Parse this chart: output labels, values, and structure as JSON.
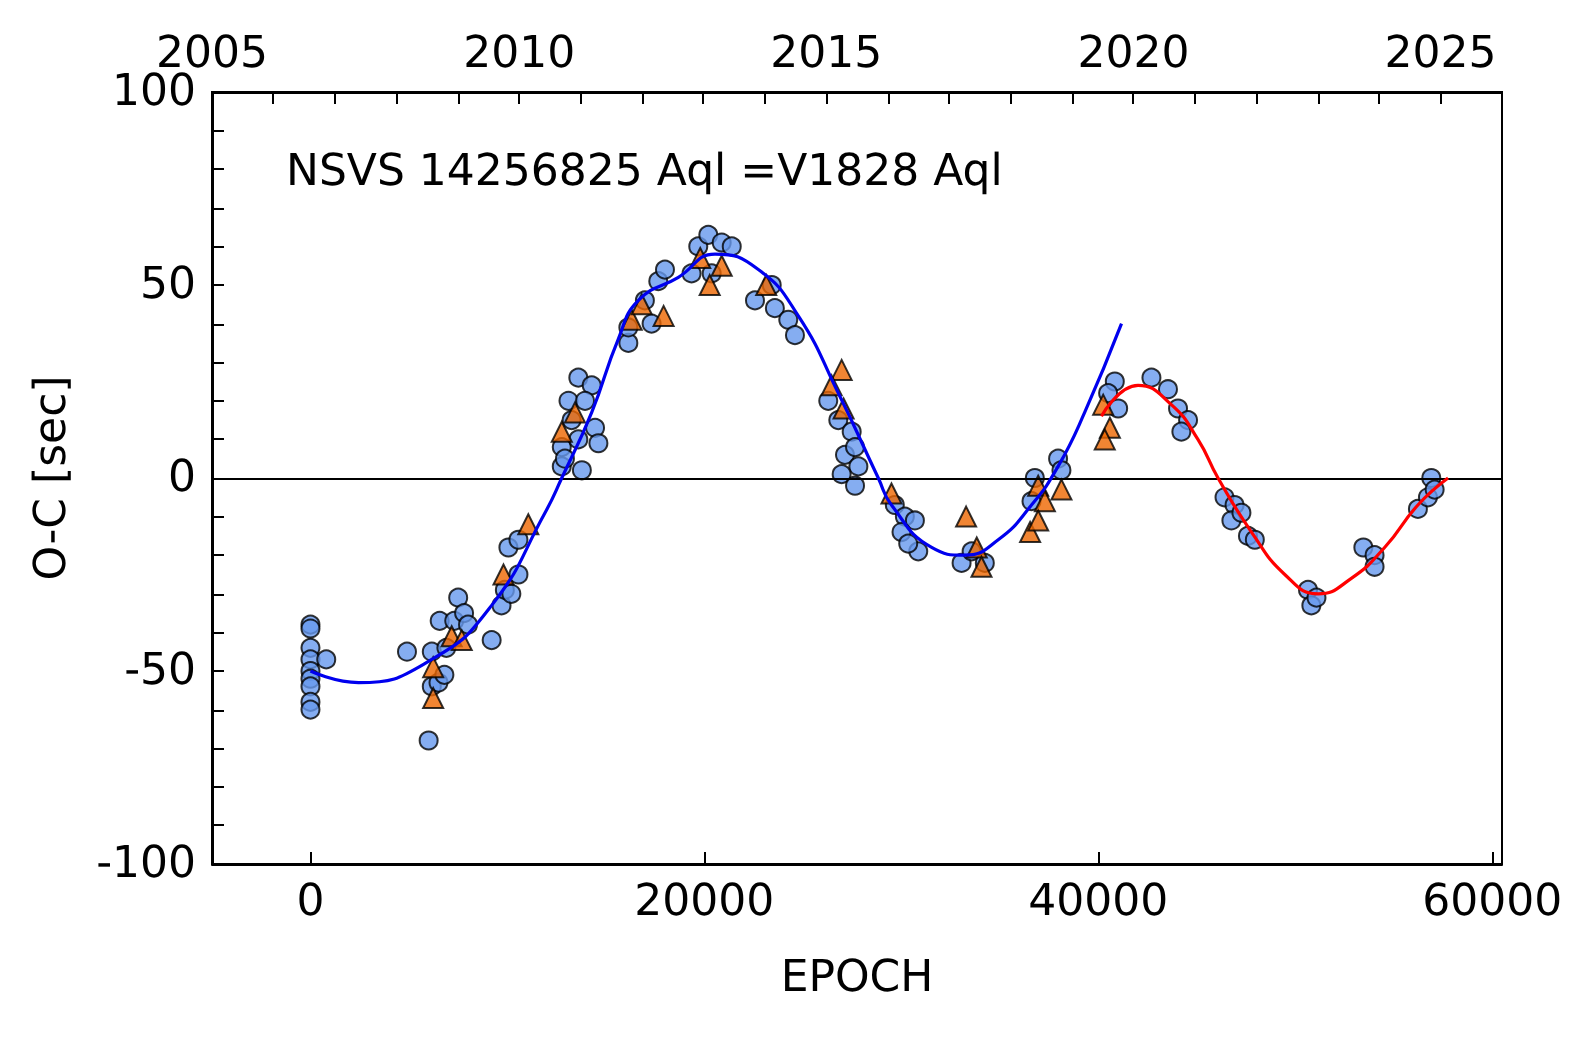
{
  "chart_data": {
    "type": "scatter",
    "title": "NSVS 14256825 Aql =V1828 Aql",
    "xlabel": "EPOCH",
    "ylabel": "O-C [sec]",
    "xlim": [
      -5000,
      60500
    ],
    "xticks": [
      0,
      20000,
      40000,
      60000
    ],
    "x2lim": [
      2005,
      2026
    ],
    "x2ticks": [
      2005,
      {
        "value": 2006,
        "label": null
      },
      {
        "value": 2007,
        "label": null
      },
      {
        "value": 2008,
        "label": null
      },
      {
        "value": 2009,
        "label": null
      },
      2010,
      {
        "value": 2011,
        "label": null
      },
      {
        "value": 2012,
        "label": null
      },
      {
        "value": 2013,
        "label": null
      },
      {
        "value": 2014,
        "label": null
      },
      2015,
      {
        "value": 2016,
        "label": null
      },
      {
        "value": 2017,
        "label": null
      },
      {
        "value": 2018,
        "label": null
      },
      {
        "value": 2019,
        "label": null
      },
      2020,
      {
        "value": 2021,
        "label": null
      },
      {
        "value": 2022,
        "label": null
      },
      {
        "value": 2023,
        "label": null
      },
      {
        "value": 2024,
        "label": null
      },
      2025
    ],
    "ylim": [
      -100,
      100
    ],
    "yticks": [
      -100,
      {
        "value": -90,
        "label": null
      },
      {
        "value": -80,
        "label": null
      },
      {
        "value": -70,
        "label": null
      },
      {
        "value": -60,
        "label": null
      },
      -50,
      {
        "value": -40,
        "label": null
      },
      {
        "value": -30,
        "label": null
      },
      {
        "value": -20,
        "label": null
      },
      {
        "value": -10,
        "label": null
      },
      0,
      {
        "value": 10,
        "label": null
      },
      {
        "value": 20,
        "label": null
      },
      {
        "value": 30,
        "label": null
      },
      {
        "value": 40,
        "label": null
      },
      50,
      {
        "value": 60,
        "label": null
      },
      {
        "value": 70,
        "label": null
      },
      {
        "value": 80,
        "label": null
      },
      {
        "value": 90,
        "label": null
      },
      100
    ],
    "grid": false,
    "ref_lines": [
      {
        "axis": "y",
        "value": 0,
        "color": "#000000"
      }
    ],
    "series": [
      {
        "marker": "circle",
        "color": "#6699ee",
        "x": [
          0,
          0,
          0,
          0,
          0,
          0,
          0,
          0,
          0,
          800,
          4900,
          6000,
          6160,
          6160,
          6500,
          6560,
          7300,
          7500,
          7800,
          8000,
          6900,
          6800,
          9200,
          9700,
          9870,
          10560,
          10200,
          10050,
          10560,
          13600,
          14280,
          13100,
          13940,
          13260,
          14450,
          12760,
          13600,
          14620,
          12760,
          13780,
          12920,
          16140,
          16140,
          16980,
          17660,
          18000,
          17320,
          19690,
          20200,
          20880,
          21390,
          19350,
          20370,
          23420,
          22570,
          23580,
          24260,
          24600,
          26290,
          26800,
          27480,
          27140,
          27820,
          26970,
          27650,
          27650,
          29670,
          30180,
          30690,
          30010,
          30860,
          30350,
          33060,
          33570,
          34240,
          36780,
          37960,
          38130,
          36610,
          40840,
          41010,
          40500,
          42700,
          43540,
          44050,
          44560,
          44220,
          46410,
          46920,
          46760,
          47270,
          47600,
          47950,
          50650,
          50820,
          51080,
          53460,
          54030,
          54030,
          56230,
          56740,
          56910,
          57080
        ],
        "values": [
          -38,
          -39,
          -44,
          -47,
          -50,
          -52,
          -54,
          -58,
          -60,
          -47,
          -45,
          -68,
          -45,
          -54,
          -53,
          -37,
          -37,
          -31,
          -35,
          -38,
          -44,
          -51,
          -42,
          -33,
          -29,
          -25,
          -30,
          -18,
          -16,
          26,
          24,
          20,
          20,
          15,
          13,
          8,
          10,
          9,
          3,
          2,
          5,
          35,
          39,
          46,
          51,
          54,
          40,
          60,
          63,
          61,
          60,
          53,
          53,
          50,
          46,
          44,
          41,
          37,
          20,
          15,
          12,
          6,
          3,
          1,
          -2,
          8,
          -7,
          -10,
          -11,
          -14,
          -19,
          -17,
          -22,
          -19,
          -22,
          0,
          5,
          2,
          -6,
          25,
          18,
          22,
          26,
          23,
          18,
          15,
          12,
          -5,
          -7,
          -11,
          -9,
          -15,
          -16,
          -29,
          -33,
          -31,
          -18,
          -20,
          -23,
          -8,
          -5,
          0,
          -3
        ]
      },
      {
        "marker": "triangle",
        "color": "#ee6600",
        "x": [
          6230,
          6230,
          7170,
          7680,
          9800,
          11060,
          13430,
          12760,
          16310,
          16820,
          17930,
          19790,
          20880,
          20270,
          23140,
          26970,
          26460,
          27070,
          29500,
          33290,
          33830,
          34070,
          36950,
          37290,
          38130,
          36540,
          36950,
          40250,
          40590,
          40330
        ],
        "values": [
          -49,
          -57,
          -41,
          -42,
          -25,
          -12,
          17,
          12,
          41,
          45,
          42,
          57,
          55,
          50,
          50,
          28,
          24,
          18,
          -4,
          -10,
          -18,
          -23,
          -2,
          -6,
          -3,
          -14,
          -11,
          19,
          13,
          10
        ]
      },
      {
        "type": "line",
        "marker": "none",
        "color": "#0000ee",
        "x": [
          0,
          2440,
          6160,
          9200,
          11910,
          12760,
          14280,
          15630,
          16650,
          18680,
          20540,
          22740,
          24770,
          26800,
          28830,
          29500,
          31540,
          33220,
          34920,
          36610,
          37960,
          39310,
          41180
        ],
        "values": [
          -50,
          -53,
          -47,
          -33,
          -9,
          0,
          17,
          36,
          46,
          52,
          58,
          54,
          42,
          22,
          0,
          -7,
          -18,
          -20,
          -16,
          -7,
          3,
          17,
          40
        ]
      },
      {
        "type": "line",
        "marker": "none",
        "color": "#ff0000",
        "x": [
          40160,
          42020,
          43710,
          45060,
          46080,
          47780,
          49470,
          51160,
          52850,
          54540,
          56230,
          57760
        ],
        "values": [
          16,
          24,
          19,
          10,
          0,
          -14,
          -25,
          -30,
          -26,
          -18,
          -7,
          0
        ]
      }
    ]
  }
}
